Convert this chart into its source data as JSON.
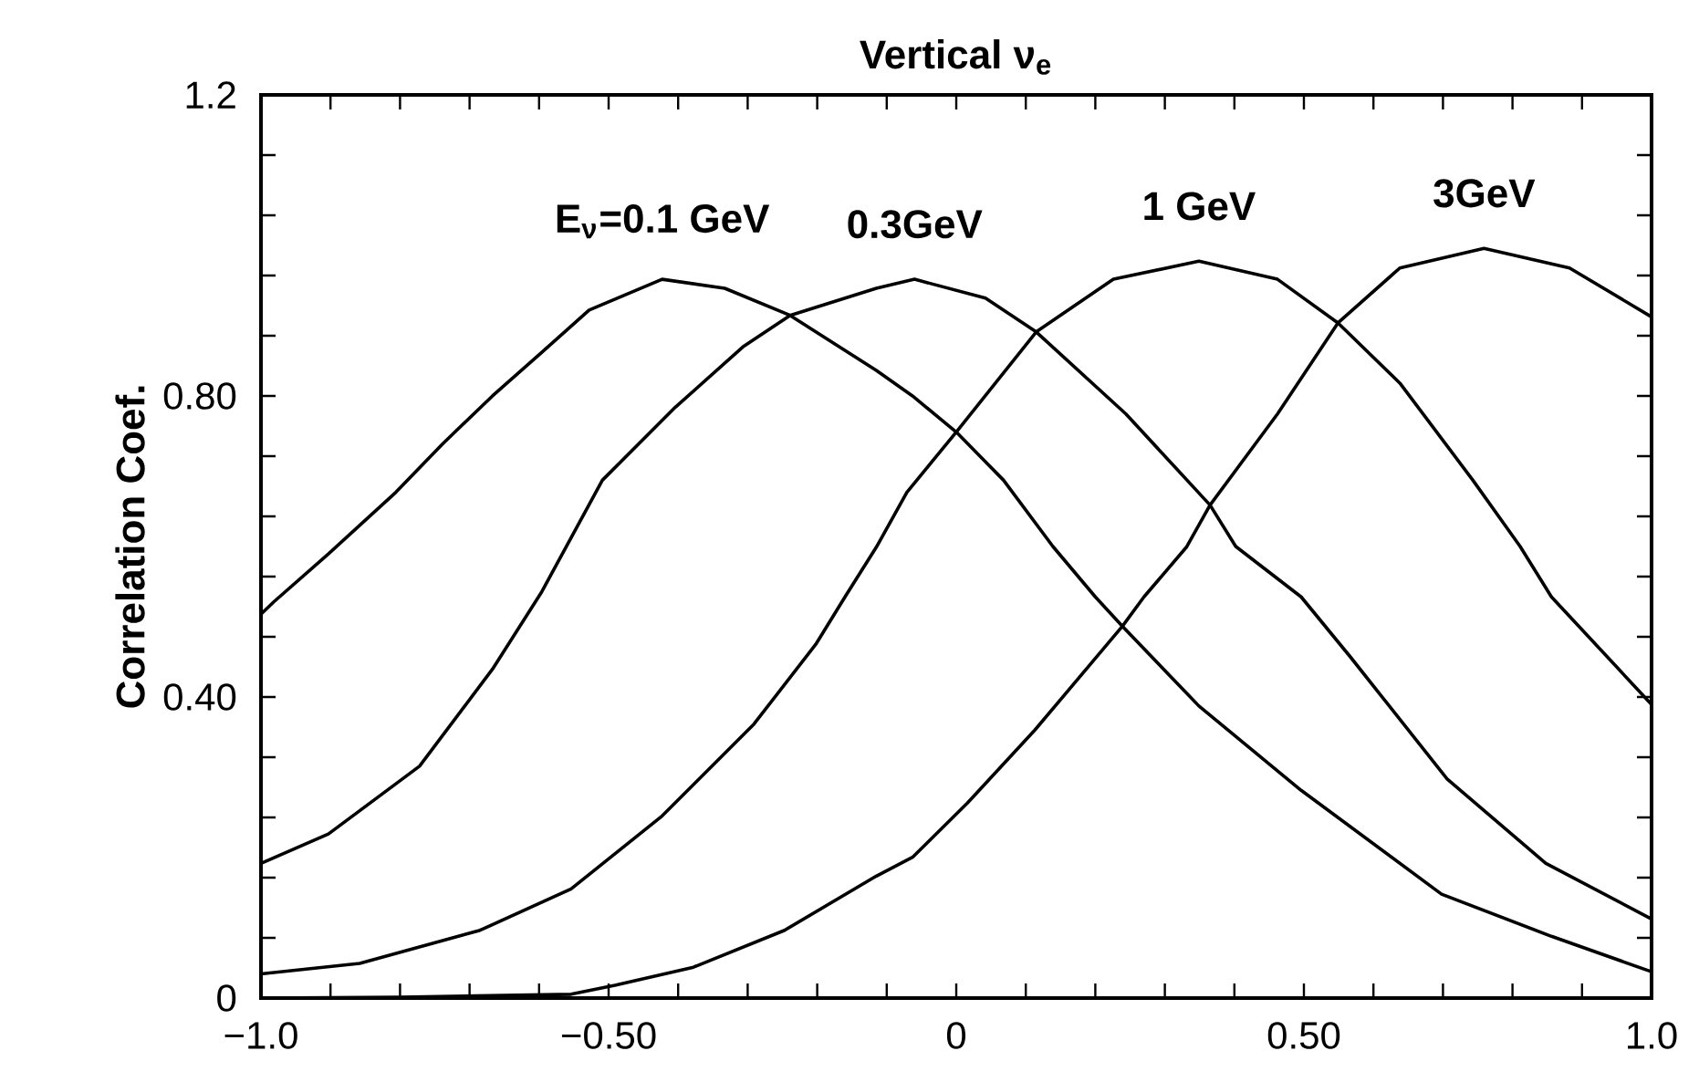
{
  "chart_data": {
    "type": "line",
    "title": "Vertical ν$_{e}$",
    "ylabel": "Correlation Coef.",
    "xlim": [
      -1,
      1
    ],
    "ylim": [
      0,
      1.2
    ],
    "xticks": [
      {
        "value": -1,
        "label": "−1.0"
      },
      {
        "value": -0.9,
        "label": null
      },
      {
        "value": -0.8,
        "label": null
      },
      {
        "value": -0.7,
        "label": null
      },
      {
        "value": -0.6,
        "label": null
      },
      {
        "value": -0.5,
        "label": "−0.50"
      },
      {
        "value": -0.4,
        "label": null
      },
      {
        "value": -0.3,
        "label": null
      },
      {
        "value": -0.2,
        "label": null
      },
      {
        "value": -0.1,
        "label": null
      },
      0,
      {
        "value": 0.1,
        "label": null
      },
      {
        "value": 0.2,
        "label": null
      },
      {
        "value": 0.3,
        "label": null
      },
      {
        "value": 0.4,
        "label": null
      },
      {
        "value": 0.5,
        "label": "0.50"
      },
      {
        "value": 0.6,
        "label": null
      },
      {
        "value": 0.7,
        "label": null
      },
      {
        "value": 0.8,
        "label": null
      },
      {
        "value": 0.9,
        "label": null
      },
      {
        "value": 1,
        "label": "1.0"
      }
    ],
    "yticks": [
      0,
      {
        "value": 0.08,
        "label": null
      },
      {
        "value": 0.16,
        "label": null
      },
      {
        "value": 0.24,
        "label": null
      },
      {
        "value": 0.32,
        "label": null
      },
      {
        "value": 0.4,
        "label": "0.40"
      },
      {
        "value": 0.48,
        "label": null
      },
      {
        "value": 0.56,
        "label": null
      },
      {
        "value": 0.64,
        "label": null
      },
      {
        "value": 0.72,
        "label": null
      },
      {
        "value": 0.8,
        "label": "0.80"
      },
      {
        "value": 0.88,
        "label": null
      },
      {
        "value": 0.96,
        "label": null
      },
      {
        "value": 1.04,
        "label": null
      },
      {
        "value": 1.12,
        "label": null
      },
      {
        "value": 1.2,
        "label": "1.2"
      }
    ],
    "marker": "none",
    "line_style": "solid",
    "series": [
      {
        "name": "E$_{ν}$=0.1 GeV",
        "color": "#000000",
        "x": [
          -1,
          -0.982,
          -0.903,
          -0.806,
          -0.738,
          -0.667,
          -0.596,
          -0.528,
          -0.423,
          -0.333,
          -0.239,
          -0.115,
          -0.063,
          0.0,
          0.068,
          0.139,
          0.2,
          0.239,
          0.349,
          0.496,
          0.698,
          0.856,
          1
        ],
        "values": [
          0.51,
          0.526,
          0.59,
          0.672,
          0.737,
          0.8,
          0.858,
          0.914,
          0.955,
          0.943,
          0.907,
          0.834,
          0.8,
          0.752,
          0.688,
          0.6,
          0.533,
          0.494,
          0.388,
          0.276,
          0.138,
          0.082,
          0.035
        ]
      },
      {
        "name": "0.3GeV",
        "color": "#000000",
        "x": [
          -1,
          -0.903,
          -0.772,
          -0.667,
          -0.596,
          -0.509,
          -0.404,
          -0.307,
          -0.239,
          -0.115,
          -0.06,
          0.042,
          0.115,
          0.244,
          0.365,
          0.402,
          0.496,
          0.567,
          0.706,
          0.848,
          1
        ],
        "values": [
          0.179,
          0.218,
          0.308,
          0.437,
          0.54,
          0.688,
          0.785,
          0.865,
          0.907,
          0.943,
          0.955,
          0.93,
          0.885,
          0.776,
          0.655,
          0.6,
          0.533,
          0.453,
          0.291,
          0.179,
          0.105
        ]
      },
      {
        "name": "1 GeV",
        "color": "#000000",
        "x": [
          -1,
          -0.858,
          -0.685,
          -0.554,
          -0.423,
          -0.291,
          -0.202,
          -0.16,
          -0.115,
          -0.071,
          0.0,
          0.115,
          0.226,
          0.349,
          0.462,
          0.549,
          0.638,
          0.743,
          0.811,
          0.856,
          1
        ],
        "values": [
          0.032,
          0.046,
          0.09,
          0.145,
          0.242,
          0.364,
          0.47,
          0.533,
          0.599,
          0.672,
          0.752,
          0.885,
          0.955,
          0.979,
          0.955,
          0.897,
          0.817,
          0.688,
          0.6,
          0.533,
          0.39
        ]
      },
      {
        "name": "3GeV",
        "color": "#000000",
        "x": [
          -1,
          -0.8,
          -0.554,
          -0.491,
          -0.378,
          -0.247,
          -0.115,
          -0.063,
          0.016,
          0.113,
          0.239,
          0.27,
          0.331,
          0.365,
          0.462,
          0.549,
          0.638,
          0.759,
          0.882,
          1
        ],
        "values": [
          0.0,
          0.001,
          0.005,
          0.017,
          0.041,
          0.09,
          0.162,
          0.187,
          0.259,
          0.356,
          0.494,
          0.533,
          0.599,
          0.655,
          0.776,
          0.897,
          0.97,
          0.996,
          0.97,
          0.905
        ]
      }
    ]
  }
}
